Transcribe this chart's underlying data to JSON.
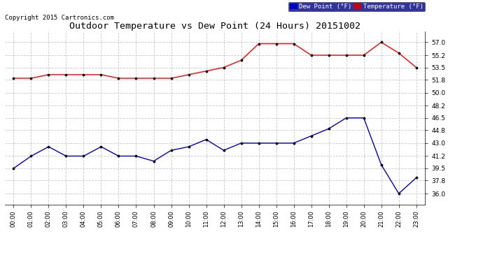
{
  "title": "Outdoor Temperature vs Dew Point (24 Hours) 20151002",
  "copyright": "Copyright 2015 Cartronics.com",
  "x_labels": [
    "00:00",
    "01:00",
    "02:00",
    "03:00",
    "04:00",
    "05:00",
    "06:00",
    "07:00",
    "08:00",
    "09:00",
    "10:00",
    "11:00",
    "12:00",
    "13:00",
    "14:00",
    "15:00",
    "16:00",
    "17:00",
    "18:00",
    "19:00",
    "20:00",
    "21:00",
    "22:00",
    "23:00"
  ],
  "temperature": [
    52.0,
    52.0,
    52.5,
    52.5,
    52.5,
    52.5,
    52.0,
    52.0,
    52.0,
    52.0,
    52.5,
    53.0,
    53.5,
    54.5,
    56.8,
    56.8,
    56.8,
    55.2,
    55.2,
    55.2,
    55.2,
    57.0,
    55.5,
    53.5
  ],
  "dew_point": [
    39.5,
    41.2,
    42.5,
    41.2,
    41.2,
    42.5,
    41.2,
    41.2,
    40.5,
    42.0,
    42.5,
    43.5,
    42.0,
    43.0,
    43.0,
    43.0,
    43.0,
    44.0,
    45.0,
    46.5,
    46.5,
    40.0,
    36.0,
    38.2
  ],
  "temp_color": "#ff0000",
  "dew_color": "#0000cc",
  "ylim_min": 34.5,
  "ylim_max": 58.5,
  "yticks": [
    36.0,
    37.8,
    39.5,
    41.2,
    43.0,
    44.8,
    46.5,
    48.2,
    50.0,
    51.8,
    53.5,
    55.2,
    57.0
  ],
  "background_color": "#ffffff",
  "grid_color": "#c8c8c8",
  "legend_dew_bg": "#0000cc",
  "legend_temp_bg": "#cc0000",
  "legend_text_color": "#ffffff"
}
